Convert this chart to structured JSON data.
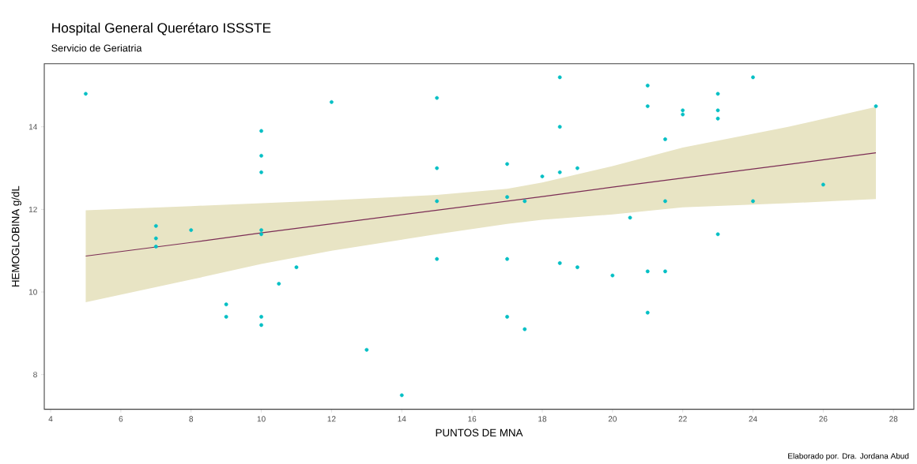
{
  "chart_data": {
    "type": "scatter",
    "title": "Hospital General Querétaro ISSSTE",
    "subtitle": "Servicio de Geriatria",
    "xlabel": "PUNTOS DE MNA",
    "ylabel": "HEMOGLOBINA g/dL",
    "annotations": [
      "Elaborado por. Dra. Jordana Abud"
    ],
    "xlim": [
      3.82,
      28.58
    ],
    "ylim": [
      7.16,
      15.53
    ],
    "xticks": [
      4,
      6,
      8,
      10,
      12,
      14,
      16,
      18,
      20,
      22,
      24,
      26,
      28
    ],
    "yticks": [
      8,
      10,
      12,
      14
    ],
    "grid": false,
    "series": [
      {
        "color": "#00bfc4",
        "marker": "circle",
        "x": [
          5,
          7,
          7,
          7,
          8,
          9,
          9,
          10,
          10,
          10,
          10,
          10,
          10,
          10,
          10.5,
          11,
          12,
          13,
          14,
          15,
          15,
          15,
          15,
          17,
          17,
          17,
          17,
          17.5,
          17.5,
          18,
          18.5,
          18.5,
          18.5,
          18.5,
          19,
          19,
          20,
          20.5,
          21,
          21,
          21,
          21,
          21.5,
          21.5,
          21.5,
          22,
          22,
          23,
          23,
          23,
          23,
          24,
          24,
          26,
          27.5
        ],
        "values": [
          14.8,
          11.6,
          11.3,
          11.1,
          11.5,
          9.7,
          9.4,
          13.9,
          13.3,
          12.9,
          11.5,
          11.4,
          9.4,
          9.2,
          10.2,
          10.6,
          14.6,
          8.6,
          7.5,
          14.7,
          13.0,
          12.2,
          10.8,
          13.1,
          12.3,
          10.8,
          9.4,
          12.2,
          9.1,
          12.8,
          15.2,
          14.0,
          12.9,
          10.7,
          13.0,
          10.6,
          10.4,
          11.8,
          15.0,
          14.5,
          10.5,
          9.5,
          13.7,
          12.2,
          10.5,
          14.4,
          14.3,
          14.8,
          14.4,
          14.2,
          11.4,
          15.2,
          12.2,
          12.6,
          14.5
        ]
      },
      {
        "type": "line",
        "color": "#7b2d55",
        "marker": "none",
        "x": [
          5,
          8,
          10,
          12,
          15,
          17,
          18,
          20,
          22,
          25,
          27.5
        ],
        "values": [
          10.87,
          11.2,
          11.43,
          11.65,
          11.98,
          12.2,
          12.31,
          12.54,
          12.76,
          13.09,
          13.37
        ],
        "lower": [
          9.75,
          10.3,
          10.68,
          11.0,
          11.4,
          11.65,
          11.75,
          11.88,
          12.05,
          12.15,
          12.25
        ],
        "upper": [
          11.98,
          12.08,
          12.15,
          12.22,
          12.35,
          12.5,
          12.65,
          13.05,
          13.5,
          14.0,
          14.48
        ]
      }
    ]
  }
}
